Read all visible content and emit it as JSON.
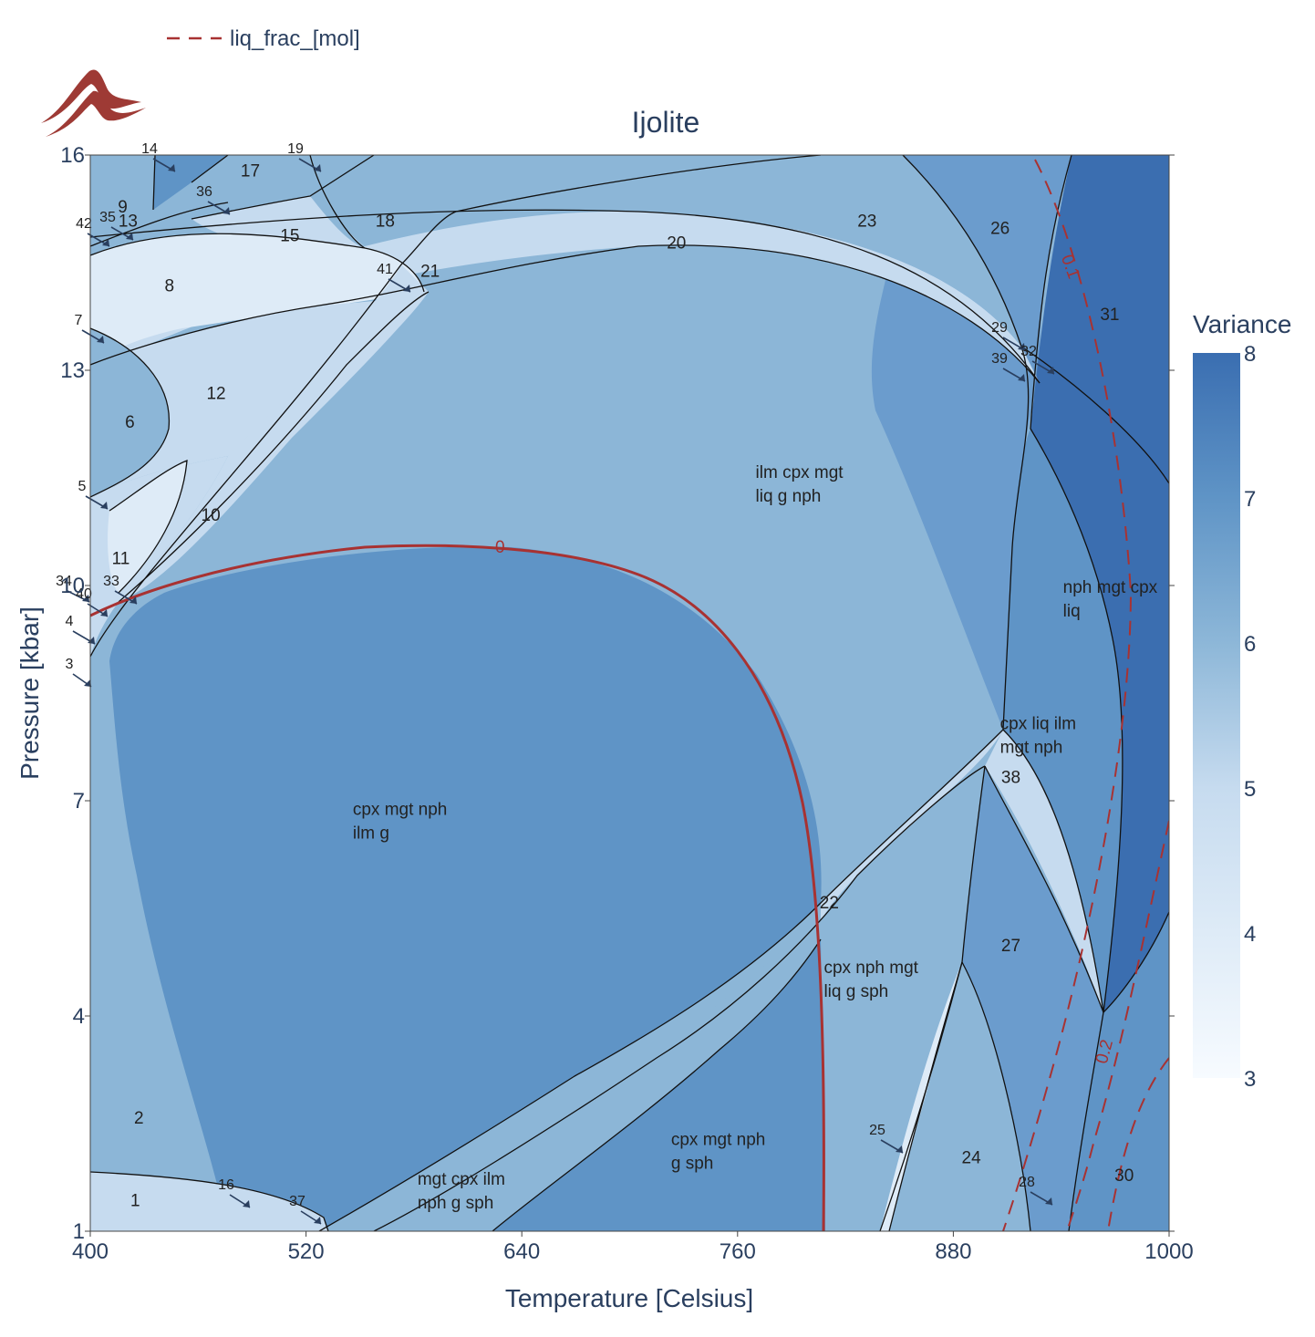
{
  "chart_data": {
    "type": "heatmap",
    "title": "Ijolite",
    "xlabel": "Temperature [Celsius]",
    "ylabel": "Pressure [kbar]",
    "xlim": [
      400,
      1000
    ],
    "ylim": [
      1,
      16
    ],
    "xticks": [
      "400",
      "520",
      "640",
      "760",
      "880",
      "1000"
    ],
    "yticks": [
      "1",
      "4",
      "7",
      "10",
      "13",
      "16"
    ],
    "colorbar": {
      "title": "Variance",
      "ticks": [
        "3",
        "4",
        "5",
        "6",
        "7",
        "8"
      ],
      "range": [
        3,
        8
      ],
      "colors": [
        "#f7fbff",
        "#deebf7",
        "#c6dbef",
        "#9ecae1",
        "#6baed6",
        "#2171b5"
      ]
    },
    "legend": {
      "position": "top-left",
      "entries": [
        "liq_frac_[mol]"
      ]
    },
    "contour_labels": [
      "0",
      "0.1",
      "0.2"
    ],
    "fields": [
      {
        "id": "1",
        "x": 425,
        "y": 1.35,
        "variance": 5
      },
      {
        "id": "2",
        "x": 427,
        "y": 2.5,
        "variance": 6
      },
      {
        "id": "6",
        "x": 422,
        "y": 12.2,
        "variance": 6
      },
      {
        "id": "8",
        "x": 444,
        "y": 14.1,
        "variance": 4
      },
      {
        "id": "9",
        "x": 418,
        "y": 15.2,
        "variance": 6
      },
      {
        "id": "10",
        "x": 467,
        "y": 10.9,
        "variance": 5
      },
      {
        "id": "11",
        "x": 417,
        "y": 10.3,
        "variance": 4
      },
      {
        "id": "12",
        "x": 470,
        "y": 12.6,
        "variance": 5
      },
      {
        "id": "13",
        "x": 421,
        "y": 15.0,
        "variance": 5
      },
      {
        "id": "15",
        "x": 511,
        "y": 14.8,
        "variance": 5
      },
      {
        "id": "17",
        "x": 489,
        "y": 15.7,
        "variance": 6
      },
      {
        "id": "18",
        "x": 564,
        "y": 15.0,
        "variance": 6
      },
      {
        "id": "20",
        "x": 726,
        "y": 14.7,
        "variance": 5
      },
      {
        "id": "21",
        "x": 589,
        "y": 14.3,
        "variance": 5
      },
      {
        "id": "22",
        "x": 811,
        "y": 5.5,
        "variance": 5
      },
      {
        "id": "23",
        "x": 832,
        "y": 15.0,
        "variance": 6
      },
      {
        "id": "24",
        "x": 890,
        "y": 1.95,
        "variance": 6
      },
      {
        "id": "26",
        "x": 906,
        "y": 14.9,
        "variance": 7
      },
      {
        "id": "27",
        "x": 912,
        "y": 4.9,
        "variance": 7
      },
      {
        "id": "30",
        "x": 975,
        "y": 1.7,
        "variance": 7
      },
      {
        "id": "31",
        "x": 967,
        "y": 13.7,
        "variance": 8
      },
      {
        "id": "38",
        "x": 912,
        "y": 7.25,
        "variance": 6
      }
    ],
    "small_fields": [
      "3",
      "4",
      "5",
      "7",
      "14",
      "16",
      "19",
      "25",
      "28",
      "29",
      "32",
      "33",
      "34",
      "35",
      "36",
      "37",
      "39",
      "40",
      "41",
      "42"
    ],
    "assemblage_labels": [
      {
        "lines": [
          "ilm cpx mgt",
          "liq g nph"
        ],
        "x": 770,
        "y": 11.5,
        "variance": 6
      },
      {
        "lines": [
          "cpx mgt nph",
          "ilm g"
        ],
        "x": 546,
        "y": 6.8,
        "variance": 7
      },
      {
        "lines": [
          "nph mgt cpx",
          "liq"
        ],
        "x": 941,
        "y": 9.9,
        "variance": 8
      },
      {
        "lines": [
          "cpx liq ilm",
          "mgt nph"
        ],
        "x": 906,
        "y": 8.0,
        "variance": 7
      },
      {
        "lines": [
          "cpx nph mgt",
          "liq g sph"
        ],
        "x": 808,
        "y": 4.6,
        "variance": 6
      },
      {
        "lines": [
          "mgt cpx ilm",
          "nph g sph"
        ],
        "x": 582,
        "y": 1.65,
        "variance": 6
      },
      {
        "lines": [
          "cpx mgt nph",
          "g sph"
        ],
        "x": 723,
        "y": 2.2,
        "variance": 7
      }
    ]
  }
}
